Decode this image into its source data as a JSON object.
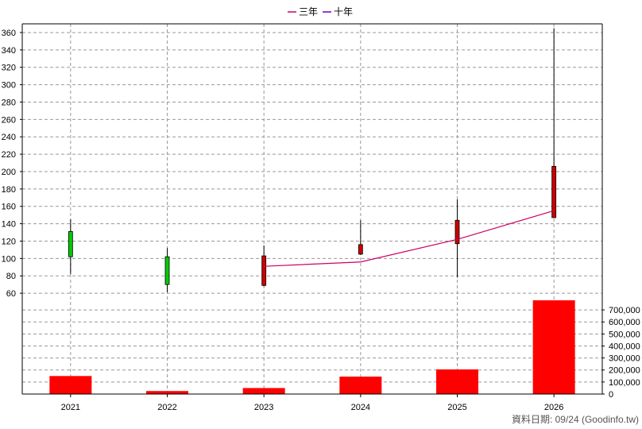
{
  "chart_data": {
    "type": "candlestick+bar",
    "legend": [
      {
        "label": "三年",
        "color": "#cc0066"
      },
      {
        "label": "十年",
        "color": "#6600cc"
      }
    ],
    "categories": [
      "2021",
      "2022",
      "2023",
      "2024",
      "2025",
      "2026"
    ],
    "price_axis": {
      "ylim": [
        40,
        370
      ],
      "ticks": [
        "60",
        "80",
        "100",
        "120",
        "140",
        "160",
        "180",
        "200",
        "220",
        "240",
        "260",
        "280",
        "300",
        "320",
        "340",
        "360"
      ]
    },
    "volume_axis": {
      "ylim": [
        0,
        780000
      ],
      "ticks": [
        "0",
        "100,000",
        "200,000",
        "300,000",
        "400,000",
        "500,000",
        "600,000",
        "700,000"
      ]
    },
    "candles": [
      {
        "year": "2021",
        "open": 102,
        "high": 145,
        "low": 82,
        "close": 131,
        "color": "#00cc00"
      },
      {
        "year": "2022",
        "open": 70,
        "high": 112,
        "low": 61,
        "close": 102,
        "color": "#00cc00"
      },
      {
        "year": "2023",
        "open": 103,
        "high": 115,
        "low": 68,
        "close": 69,
        "color": "#cc0000"
      },
      {
        "year": "2024",
        "open": 116,
        "high": 144,
        "low": 104,
        "close": 105,
        "color": "#cc0000"
      },
      {
        "year": "2025",
        "open": 144,
        "high": 168,
        "low": 78,
        "close": 117,
        "color": "#cc0000"
      },
      {
        "year": "2026",
        "open": 206,
        "high": 365,
        "low": 147,
        "close": 147,
        "color": "#cc0000"
      }
    ],
    "series": [
      {
        "name": "三年",
        "color": "#cc0066",
        "x": [
          "2023",
          "2024",
          "2025",
          "2026"
        ],
        "values": [
          91,
          96,
          122,
          155
        ]
      }
    ],
    "volume": {
      "color": "#ff0000",
      "values": [
        150000,
        25000,
        50000,
        145000,
        205000,
        780000
      ]
    },
    "grid": true,
    "legend_position": "top-center"
  },
  "footer": {
    "source": "資料日期: 09/24  (Goodinfo.tw)"
  }
}
